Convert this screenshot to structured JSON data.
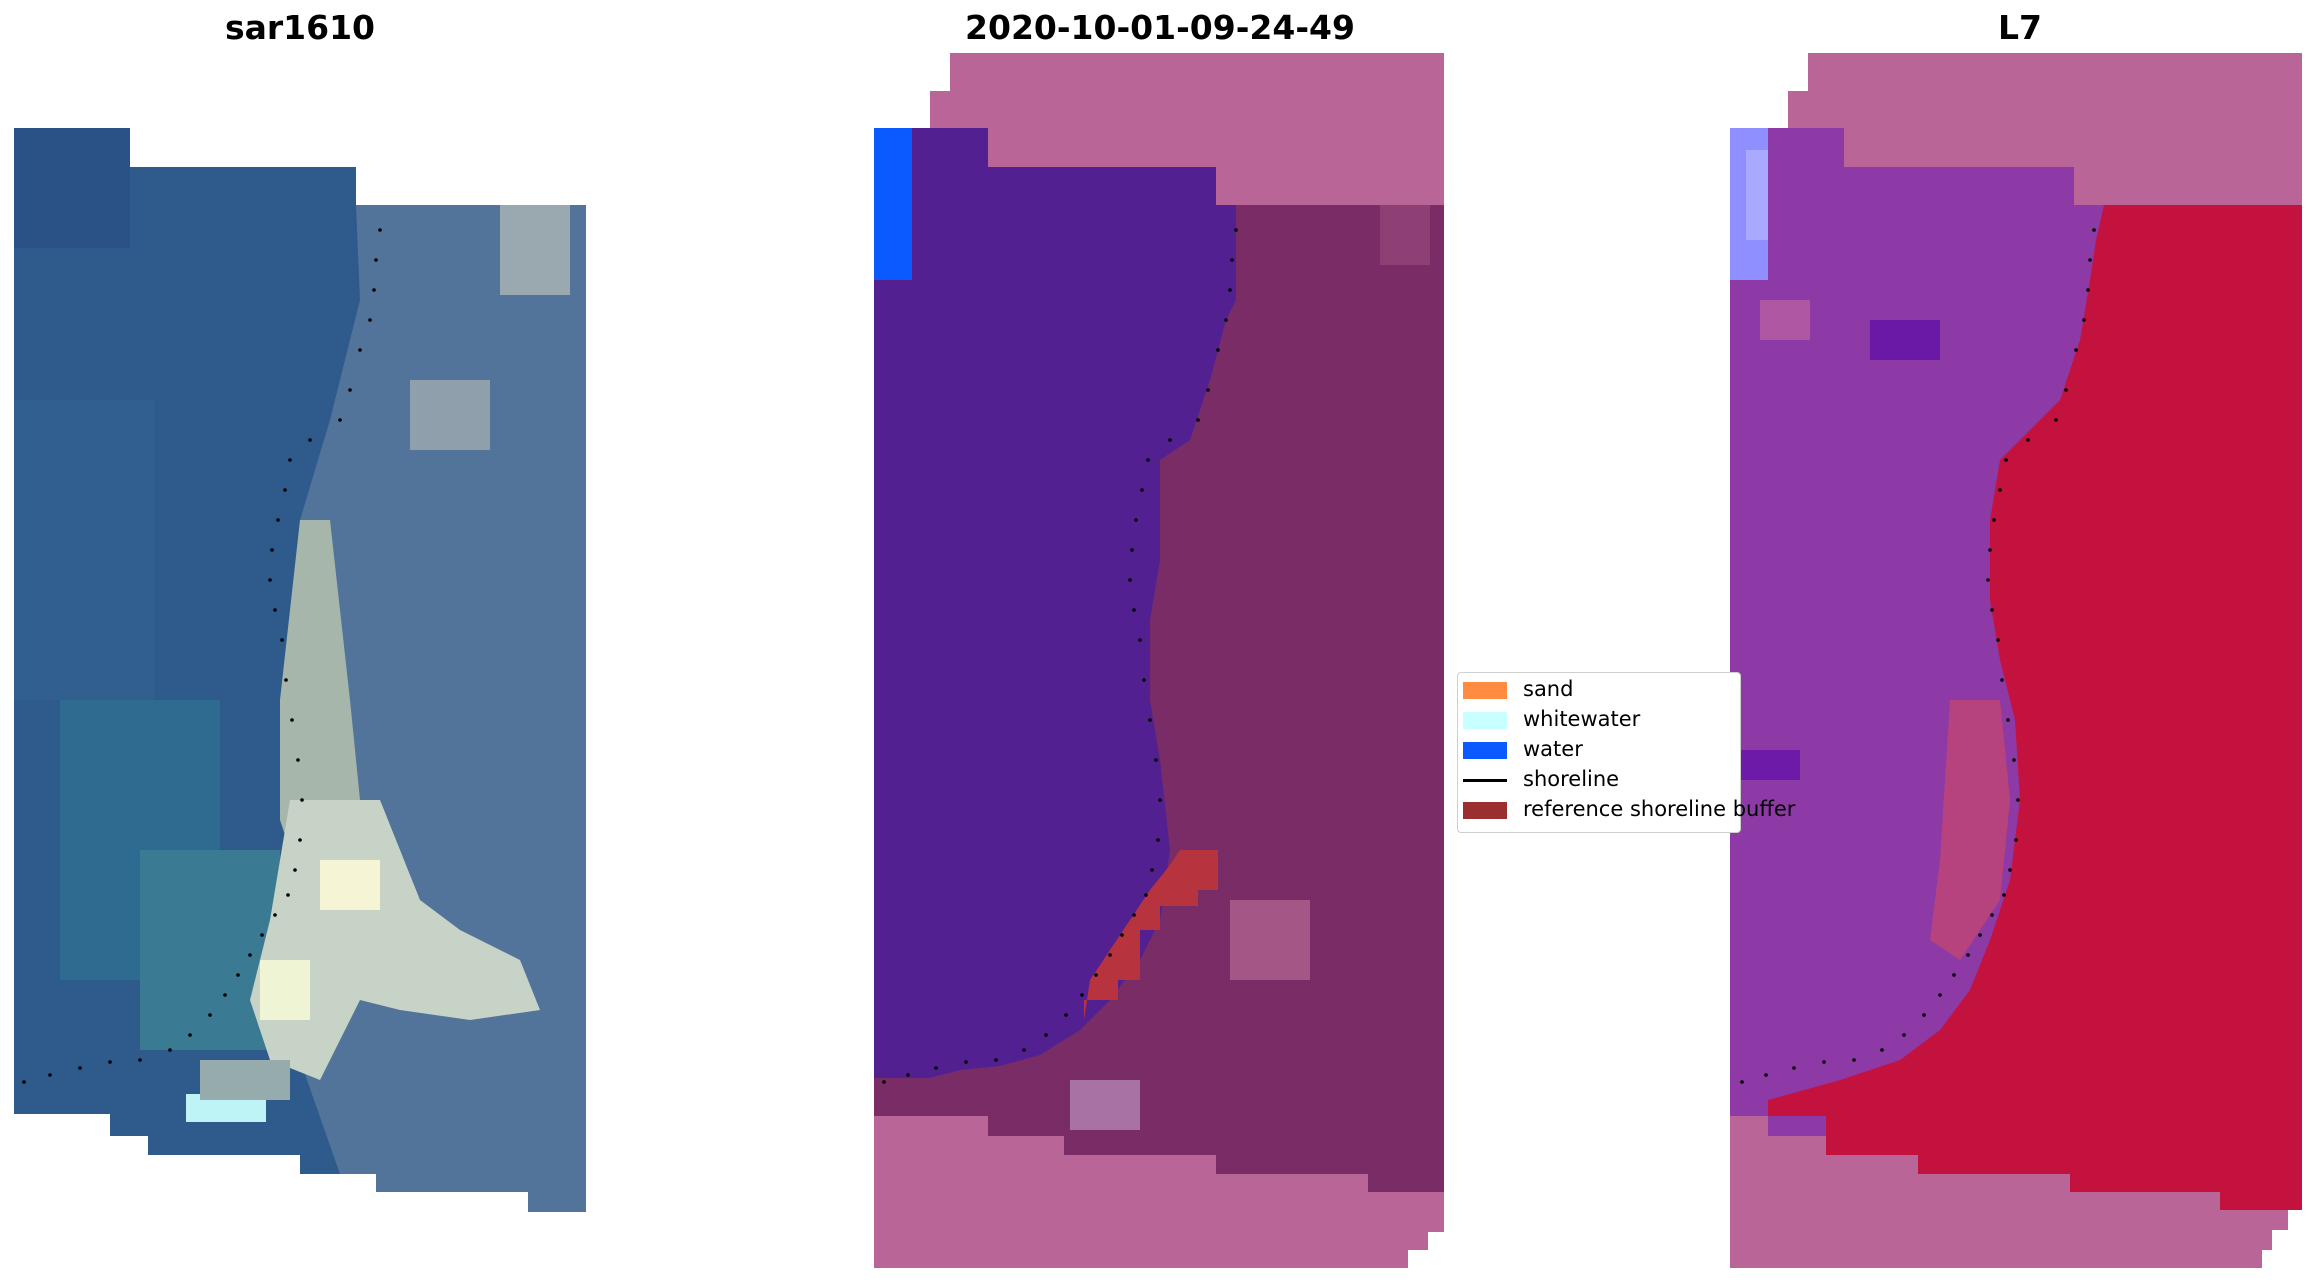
{
  "panels": [
    {
      "title": "sar1610"
    },
    {
      "title": "2020-10-01-09-24-49"
    },
    {
      "title": "L7"
    }
  ],
  "legend": {
    "items": [
      {
        "label": "sand",
        "color": "#ff8c40",
        "kind": "patch"
      },
      {
        "label": "whitewater",
        "color": "#c8ffff",
        "kind": "patch"
      },
      {
        "label": "water",
        "color": "#0a5aff",
        "kind": "patch"
      },
      {
        "label": "shoreline",
        "color": "#000000",
        "kind": "line"
      },
      {
        "label": "reference shoreline buffer",
        "color": "#9b2f2f",
        "kind": "patch"
      }
    ]
  },
  "colors": {
    "sea_blue": "#2f5a8c",
    "water_class": "#532092",
    "land_overlay": "#7a2c66",
    "nodata_pink": "#b96597",
    "buffer_red": "#b7343e",
    "ndwi_land_red": "#c4123e",
    "ndwi_water_purple": "#8e3aa6"
  }
}
